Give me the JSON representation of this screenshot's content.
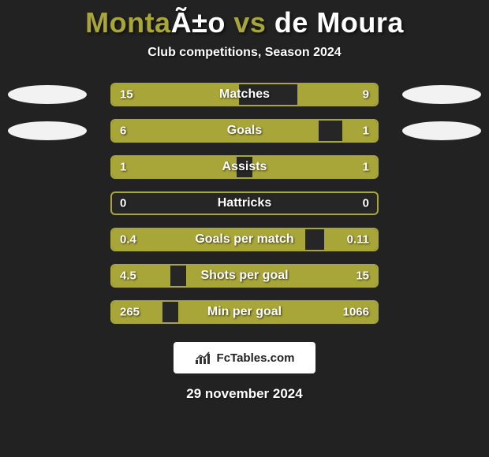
{
  "title": {
    "prefix": "Monta",
    "prefix_color": "#a8a539",
    "mid": "Ã±o",
    "mid_color": "#ffffff",
    "vs": " vs ",
    "vs_color": "#a8a539",
    "suffix": "de Moura",
    "suffix_color": "#ffffff",
    "fontsize": 36
  },
  "subtitle": {
    "text": "Club competitions, Season 2024",
    "fontsize": 16,
    "color": "#ffffff"
  },
  "background_color": "#222222",
  "bar": {
    "track_width": 340,
    "track_height": 30,
    "border_color": "#a8a539",
    "border_width": 2,
    "fill_color": "#a8a539",
    "label_fontsize": 16,
    "value_fontsize": 15,
    "text_color": "#ffffff"
  },
  "ellipse": {
    "color": "#f2f2f2",
    "width": 100,
    "height": 24
  },
  "rows": [
    {
      "label": "Matches",
      "left": "15",
      "right": "9",
      "left_pct": 48,
      "right_pct": 30,
      "show_ellipses": true
    },
    {
      "label": "Goals",
      "left": "6",
      "right": "1",
      "left_pct": 78,
      "right_pct": 13,
      "show_ellipses": true
    },
    {
      "label": "Assists",
      "left": "1",
      "right": "1",
      "left_pct": 47,
      "right_pct": 47,
      "show_ellipses": false
    },
    {
      "label": "Hattricks",
      "left": "0",
      "right": "0",
      "left_pct": 0,
      "right_pct": 0,
      "show_ellipses": false
    },
    {
      "label": "Goals per match",
      "left": "0.4",
      "right": "0.11",
      "left_pct": 73,
      "right_pct": 20,
      "show_ellipses": false
    },
    {
      "label": "Shots per goal",
      "left": "4.5",
      "right": "15",
      "left_pct": 22,
      "right_pct": 72,
      "show_ellipses": false
    },
    {
      "label": "Min per goal",
      "left": "265",
      "right": "1066",
      "left_pct": 19,
      "right_pct": 75,
      "show_ellipses": false
    }
  ],
  "brand": {
    "text": "FcTables.com",
    "bg": "#ffffff",
    "text_color": "#222222",
    "icon_color": "#333333"
  },
  "date": {
    "text": "29 november 2024",
    "fontsize": 17,
    "color": "#ffffff"
  }
}
